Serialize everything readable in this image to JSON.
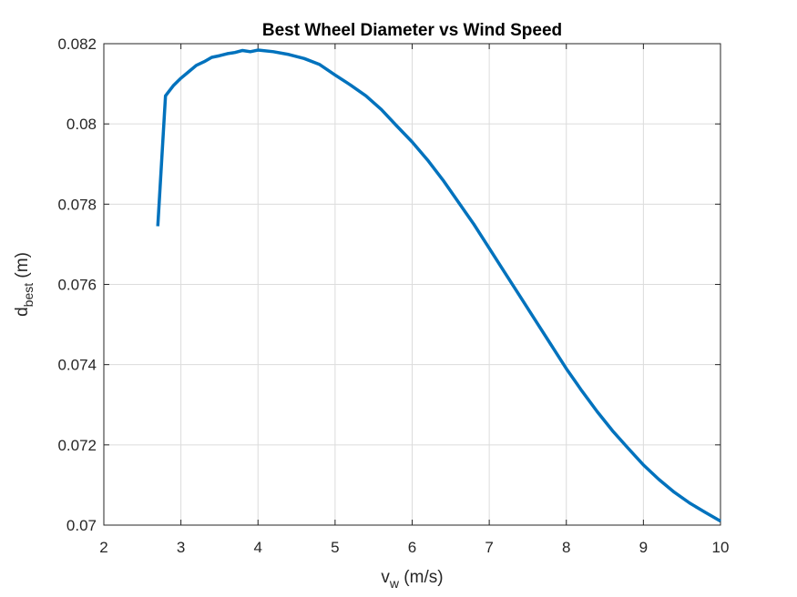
{
  "chart_data": {
    "type": "line",
    "title": "Best Wheel Diameter vs Wind Speed",
    "xlabel": {
      "main": "v",
      "sub": "w",
      "rest": " (m/s)"
    },
    "ylabel": {
      "main": "d",
      "sub": "best",
      "rest": " (m)"
    },
    "xlim": [
      2,
      10
    ],
    "ylim": [
      0.07,
      0.082
    ],
    "xticks": [
      2,
      3,
      4,
      5,
      6,
      7,
      8,
      9,
      10
    ],
    "yticks": [
      0.07,
      0.072,
      0.074,
      0.076,
      0.078,
      0.08,
      0.082
    ],
    "xtick_labels": [
      "2",
      "3",
      "4",
      "5",
      "6",
      "7",
      "8",
      "9",
      "10"
    ],
    "ytick_labels": [
      "0.07",
      "0.072",
      "0.074",
      "0.076",
      "0.078",
      "0.08",
      "0.082"
    ],
    "grid": true,
    "line_color": "#0072BD",
    "series": [
      {
        "x": [
          2.7,
          2.8,
          2.9,
          3.0,
          3.1,
          3.2,
          3.3,
          3.4,
          3.5,
          3.6,
          3.7,
          3.8,
          3.9,
          4.0,
          4.2,
          4.4,
          4.6,
          4.8,
          5.0,
          5.2,
          5.4,
          5.6,
          5.8,
          6.0,
          6.2,
          6.4,
          6.6,
          6.8,
          7.0,
          7.2,
          7.4,
          7.6,
          7.8,
          8.0,
          8.2,
          8.4,
          8.6,
          8.8,
          9.0,
          9.2,
          9.4,
          9.6,
          9.8,
          10.0
        ],
        "y": [
          0.07745,
          0.0807,
          0.08095,
          0.08114,
          0.0813,
          0.08146,
          0.08155,
          0.08166,
          0.0817,
          0.08175,
          0.08178,
          0.08183,
          0.0818,
          0.08184,
          0.0818,
          0.08173,
          0.08163,
          0.08148,
          0.08122,
          0.08097,
          0.0807,
          0.08036,
          0.07995,
          0.07955,
          0.0791,
          0.0786,
          0.07805,
          0.0775,
          0.0769,
          0.0763,
          0.0757,
          0.0751,
          0.0745,
          0.0739,
          0.07335,
          0.07283,
          0.07235,
          0.07192,
          0.0715,
          0.07114,
          0.07082,
          0.07055,
          0.07032,
          0.0701
        ]
      }
    ]
  }
}
